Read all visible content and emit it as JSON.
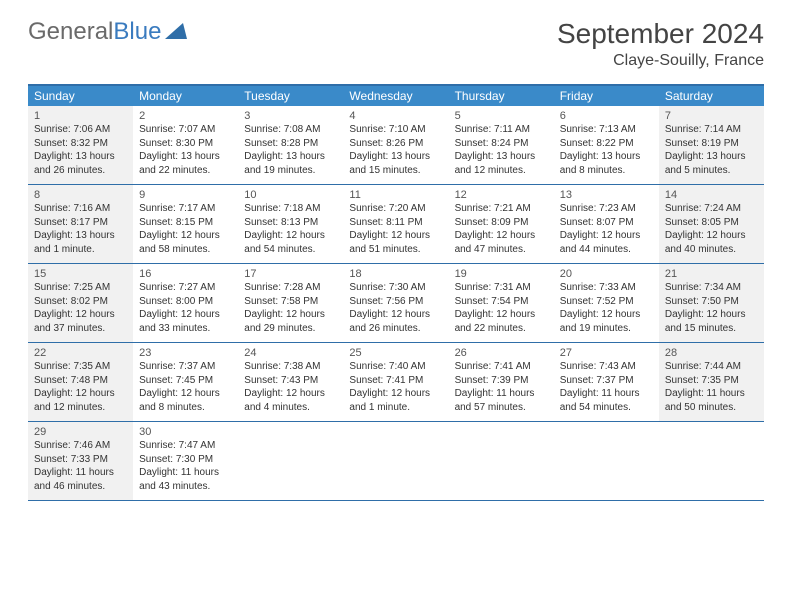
{
  "logo": {
    "part1": "General",
    "part2": "Blue"
  },
  "title": "September 2024",
  "location": "Claye-Souilly, France",
  "colors": {
    "header_bg": "#3a8ac9",
    "border": "#2f6ea8",
    "shaded_bg": "#f1f1f1",
    "text": "#333333"
  },
  "dayNames": [
    "Sunday",
    "Monday",
    "Tuesday",
    "Wednesday",
    "Thursday",
    "Friday",
    "Saturday"
  ],
  "weeks": [
    [
      {
        "n": "1",
        "shaded": true,
        "sunrise": "7:06 AM",
        "sunset": "8:32 PM",
        "daylight": "13 hours and 26 minutes."
      },
      {
        "n": "2",
        "shaded": false,
        "sunrise": "7:07 AM",
        "sunset": "8:30 PM",
        "daylight": "13 hours and 22 minutes."
      },
      {
        "n": "3",
        "shaded": false,
        "sunrise": "7:08 AM",
        "sunset": "8:28 PM",
        "daylight": "13 hours and 19 minutes."
      },
      {
        "n": "4",
        "shaded": false,
        "sunrise": "7:10 AM",
        "sunset": "8:26 PM",
        "daylight": "13 hours and 15 minutes."
      },
      {
        "n": "5",
        "shaded": false,
        "sunrise": "7:11 AM",
        "sunset": "8:24 PM",
        "daylight": "13 hours and 12 minutes."
      },
      {
        "n": "6",
        "shaded": false,
        "sunrise": "7:13 AM",
        "sunset": "8:22 PM",
        "daylight": "13 hours and 8 minutes."
      },
      {
        "n": "7",
        "shaded": true,
        "sunrise": "7:14 AM",
        "sunset": "8:19 PM",
        "daylight": "13 hours and 5 minutes."
      }
    ],
    [
      {
        "n": "8",
        "shaded": true,
        "sunrise": "7:16 AM",
        "sunset": "8:17 PM",
        "daylight": "13 hours and 1 minute."
      },
      {
        "n": "9",
        "shaded": false,
        "sunrise": "7:17 AM",
        "sunset": "8:15 PM",
        "daylight": "12 hours and 58 minutes."
      },
      {
        "n": "10",
        "shaded": false,
        "sunrise": "7:18 AM",
        "sunset": "8:13 PM",
        "daylight": "12 hours and 54 minutes."
      },
      {
        "n": "11",
        "shaded": false,
        "sunrise": "7:20 AM",
        "sunset": "8:11 PM",
        "daylight": "12 hours and 51 minutes."
      },
      {
        "n": "12",
        "shaded": false,
        "sunrise": "7:21 AM",
        "sunset": "8:09 PM",
        "daylight": "12 hours and 47 minutes."
      },
      {
        "n": "13",
        "shaded": false,
        "sunrise": "7:23 AM",
        "sunset": "8:07 PM",
        "daylight": "12 hours and 44 minutes."
      },
      {
        "n": "14",
        "shaded": true,
        "sunrise": "7:24 AM",
        "sunset": "8:05 PM",
        "daylight": "12 hours and 40 minutes."
      }
    ],
    [
      {
        "n": "15",
        "shaded": true,
        "sunrise": "7:25 AM",
        "sunset": "8:02 PM",
        "daylight": "12 hours and 37 minutes."
      },
      {
        "n": "16",
        "shaded": false,
        "sunrise": "7:27 AM",
        "sunset": "8:00 PM",
        "daylight": "12 hours and 33 minutes."
      },
      {
        "n": "17",
        "shaded": false,
        "sunrise": "7:28 AM",
        "sunset": "7:58 PM",
        "daylight": "12 hours and 29 minutes."
      },
      {
        "n": "18",
        "shaded": false,
        "sunrise": "7:30 AM",
        "sunset": "7:56 PM",
        "daylight": "12 hours and 26 minutes."
      },
      {
        "n": "19",
        "shaded": false,
        "sunrise": "7:31 AM",
        "sunset": "7:54 PM",
        "daylight": "12 hours and 22 minutes."
      },
      {
        "n": "20",
        "shaded": false,
        "sunrise": "7:33 AM",
        "sunset": "7:52 PM",
        "daylight": "12 hours and 19 minutes."
      },
      {
        "n": "21",
        "shaded": true,
        "sunrise": "7:34 AM",
        "sunset": "7:50 PM",
        "daylight": "12 hours and 15 minutes."
      }
    ],
    [
      {
        "n": "22",
        "shaded": true,
        "sunrise": "7:35 AM",
        "sunset": "7:48 PM",
        "daylight": "12 hours and 12 minutes."
      },
      {
        "n": "23",
        "shaded": false,
        "sunrise": "7:37 AM",
        "sunset": "7:45 PM",
        "daylight": "12 hours and 8 minutes."
      },
      {
        "n": "24",
        "shaded": false,
        "sunrise": "7:38 AM",
        "sunset": "7:43 PM",
        "daylight": "12 hours and 4 minutes."
      },
      {
        "n": "25",
        "shaded": false,
        "sunrise": "7:40 AM",
        "sunset": "7:41 PM",
        "daylight": "12 hours and 1 minute."
      },
      {
        "n": "26",
        "shaded": false,
        "sunrise": "7:41 AM",
        "sunset": "7:39 PM",
        "daylight": "11 hours and 57 minutes."
      },
      {
        "n": "27",
        "shaded": false,
        "sunrise": "7:43 AM",
        "sunset": "7:37 PM",
        "daylight": "11 hours and 54 minutes."
      },
      {
        "n": "28",
        "shaded": true,
        "sunrise": "7:44 AM",
        "sunset": "7:35 PM",
        "daylight": "11 hours and 50 minutes."
      }
    ],
    [
      {
        "n": "29",
        "shaded": true,
        "sunrise": "7:46 AM",
        "sunset": "7:33 PM",
        "daylight": "11 hours and 46 minutes."
      },
      {
        "n": "30",
        "shaded": false,
        "sunrise": "7:47 AM",
        "sunset": "7:30 PM",
        "daylight": "11 hours and 43 minutes."
      },
      null,
      null,
      null,
      null,
      null
    ]
  ]
}
